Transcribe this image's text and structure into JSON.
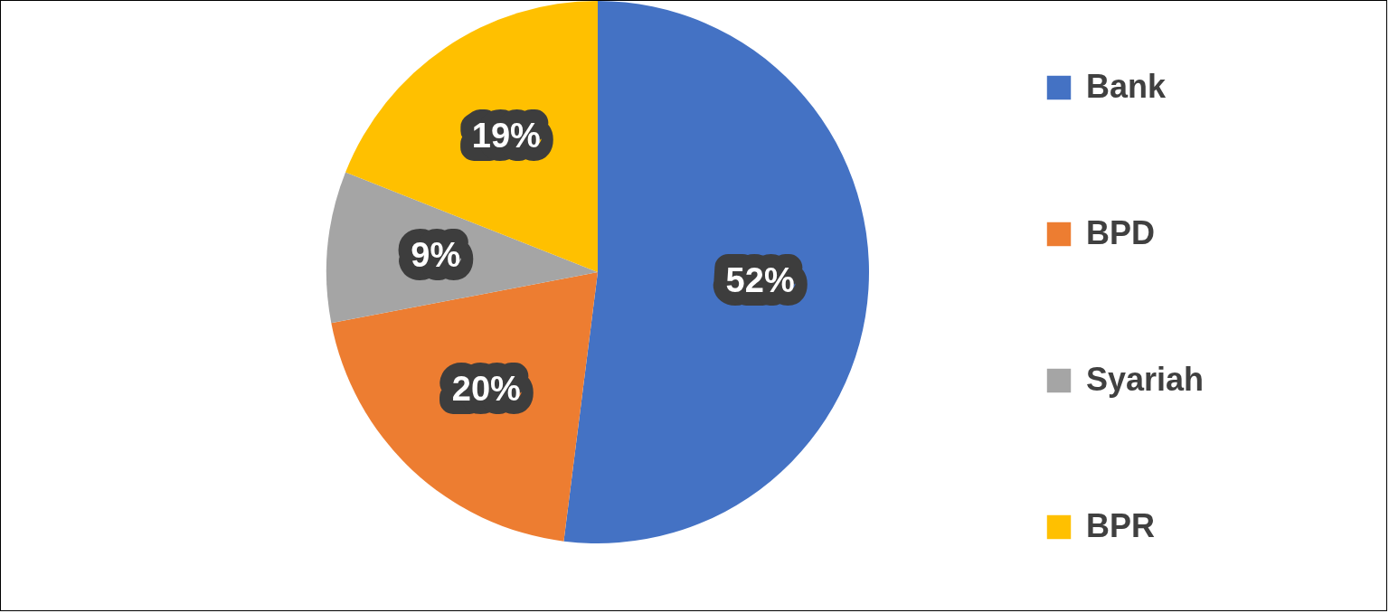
{
  "chart_data": {
    "type": "pie",
    "categories": [
      "Bank",
      "BPD",
      "Syariah",
      "BPR"
    ],
    "values": [
      52,
      20,
      9,
      19
    ],
    "colors": [
      "#4472c4",
      "#ed7d31",
      "#a5a5a5",
      "#ffc000"
    ],
    "value_labels": [
      "52%",
      "20%",
      "9%",
      "19%"
    ],
    "legend": "right"
  }
}
